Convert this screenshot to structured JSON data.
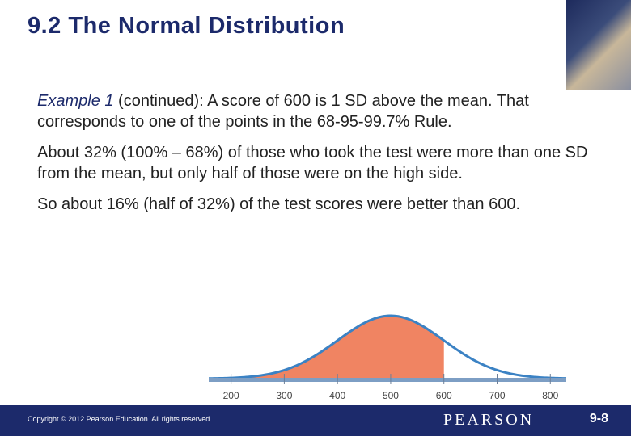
{
  "header": {
    "title": "9.2 The Normal Distribution"
  },
  "paragraphs": [
    {
      "lead": "Example 1",
      "text": " (continued): A score of 600 is 1 SD above the mean. That corresponds to one of the points in the  68-95-99.7% Rule."
    },
    {
      "text": "About 32% (100% – 68%) of those who took the test were more than one SD from the mean, but only half of those were on the high side."
    },
    {
      "text": "So about 16% (half of 32%) of the test scores were better than 600."
    }
  ],
  "chart_data": {
    "type": "normal",
    "mean": 500,
    "sd": 100,
    "shade_below": 600,
    "xlim": [
      158,
      830
    ],
    "xticks": [
      200,
      300,
      400,
      500,
      600,
      700,
      800
    ],
    "fill_color": "#f08462",
    "line_color": "#3b82c4"
  },
  "footer": {
    "copyright": "Copyright © 2012  Pearson Education. All rights reserved.",
    "brand": "PEARSON",
    "page": "9-8"
  }
}
